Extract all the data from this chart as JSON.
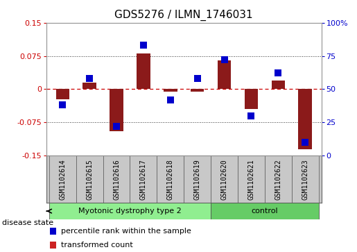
{
  "title": "GDS5276 / ILMN_1746031",
  "samples": [
    "GSM1102614",
    "GSM1102615",
    "GSM1102616",
    "GSM1102617",
    "GSM1102618",
    "GSM1102619",
    "GSM1102620",
    "GSM1102621",
    "GSM1102622",
    "GSM1102623"
  ],
  "transformed_count": [
    -0.022,
    0.015,
    -0.095,
    0.08,
    -0.005,
    -0.005,
    0.065,
    -0.045,
    0.02,
    -0.135
  ],
  "percentile_rank": [
    38,
    58,
    22,
    83,
    42,
    58,
    72,
    30,
    62,
    10
  ],
  "bar_color": "#8B1A1A",
  "point_color": "#0000CC",
  "ylim_left": [
    -0.15,
    0.15
  ],
  "ylim_right": [
    0,
    100
  ],
  "yticks_left": [
    -0.15,
    -0.075,
    0,
    0.075,
    0.15
  ],
  "yticks_right": [
    0,
    25,
    50,
    75,
    100
  ],
  "ytick_labels_left": [
    "-0.15",
    "-0.075",
    "0",
    "0.075",
    "0.15"
  ],
  "ytick_labels_right": [
    "0",
    "25",
    "50",
    "75",
    "100%"
  ],
  "hlines": [
    -0.075,
    0,
    0.075
  ],
  "hline_styles": [
    "dotted",
    "dashed",
    "dotted"
  ],
  "disease_groups": [
    {
      "label": "Myotonic dystrophy type 2",
      "indices": [
        0,
        1,
        2,
        3,
        4,
        5
      ],
      "color": "#90EE90"
    },
    {
      "label": "control",
      "indices": [
        6,
        7,
        8,
        9
      ],
      "color": "#66CC66"
    }
  ],
  "disease_state_label": "disease state",
  "legend_items": [
    {
      "label": "transformed count",
      "color": "#CC2222"
    },
    {
      "label": "percentile rank within the sample",
      "color": "#0000CC"
    }
  ],
  "bar_width": 0.5,
  "point_size": 55,
  "background_color": "#FFFFFF",
  "plot_bg_color": "#FFFFFF",
  "label_bg_color": "#C8C8C8",
  "grid_color": "#000000",
  "title_fontsize": 11,
  "tick_fontsize": 8,
  "label_fontsize": 8,
  "zero_line_color": "#CC0000",
  "separator_color": "#888888"
}
